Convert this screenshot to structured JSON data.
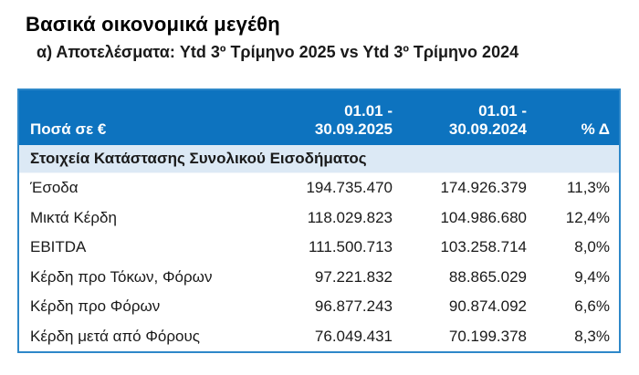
{
  "page": {
    "title": "Βασικά οικονομικά μεγέθη",
    "subtitle": "α) Αποτελέσματα: Ytd 3º Τρίμηνο 2025 vs Ytd 3º Τρίμηνο 2024"
  },
  "colors": {
    "header_bg": "#0D73BF",
    "header_text": "#FFFFFF",
    "section_bg": "#DCE9F5",
    "table_border": "#2E88C9",
    "body_text": "#1A1A1A"
  },
  "table": {
    "header": {
      "amounts_label": "Ποσά σε €",
      "col_2025_line1": "01.01 -",
      "col_2025_line2": "30.09.2025",
      "col_2024_line1": "01.01 -",
      "col_2024_line2": "30.09.2024",
      "delta_label": "% Δ"
    },
    "section_header": "Στοιχεία Κατάστασης Συνολικού Εισοδήματος",
    "rows": [
      {
        "label": "Έσοδα",
        "ytd_2025": "194.735.470",
        "ytd_2024": "174.926.379",
        "delta_pct": "11,3%"
      },
      {
        "label": "Μικτά Κέρδη",
        "ytd_2025": "118.029.823",
        "ytd_2024": "104.986.680",
        "delta_pct": "12,4%"
      },
      {
        "label": "EBITDA",
        "ytd_2025": "111.500.713",
        "ytd_2024": "103.258.714",
        "delta_pct": "8,0%"
      },
      {
        "label": "Κέρδη προ Τόκων, Φόρων",
        "ytd_2025": "97.221.832",
        "ytd_2024": "88.865.029",
        "delta_pct": "9,4%"
      },
      {
        "label": "Κέρδη προ Φόρων",
        "ytd_2025": "96.877.243",
        "ytd_2024": "90.874.092",
        "delta_pct": "6,6%"
      },
      {
        "label": "Κέρδη μετά από Φόρους",
        "ytd_2025": "76.049.431",
        "ytd_2024": "70.199.378",
        "delta_pct": "8,3%"
      }
    ]
  }
}
